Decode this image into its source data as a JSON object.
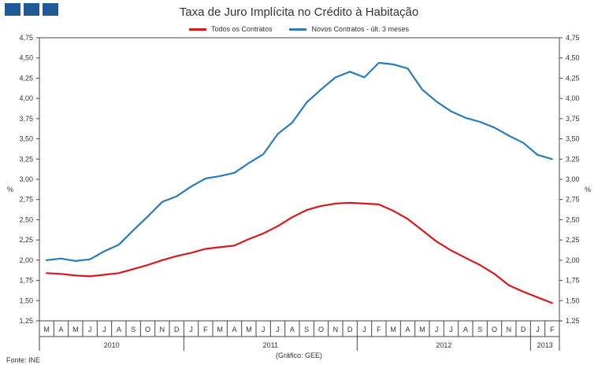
{
  "chart_data": {
    "type": "line",
    "title": "Taxa de Juro Implícita no Crédito à Habitação",
    "ylabel_left": "%",
    "ylabel_right": "%",
    "ylim": [
      1.25,
      4.75
    ],
    "yticks": [
      "1,25",
      "1,50",
      "1,75",
      "2,00",
      "2,25",
      "2,50",
      "2,75",
      "3,00",
      "3,25",
      "3,50",
      "3,75",
      "4,00",
      "4,25",
      "4,50",
      "4,75"
    ],
    "categories": [
      "M",
      "A",
      "M",
      "J",
      "J",
      "A",
      "S",
      "O",
      "N",
      "D",
      "J",
      "F",
      "M",
      "A",
      "M",
      "J",
      "J",
      "A",
      "S",
      "O",
      "N",
      "D",
      "J",
      "F",
      "M",
      "A",
      "M",
      "J",
      "J",
      "A",
      "S",
      "O",
      "N",
      "D",
      "J",
      "F"
    ],
    "years": [
      {
        "label": "2010",
        "start": 0,
        "end": 9
      },
      {
        "label": "2011",
        "start": 10,
        "end": 21
      },
      {
        "label": "2012",
        "start": 22,
        "end": 33
      },
      {
        "label": "2013",
        "start": 34,
        "end": 35
      }
    ],
    "series": [
      {
        "name": "Todos os Contratos",
        "color": "#d7191c",
        "values": [
          1.84,
          1.83,
          1.81,
          1.8,
          1.82,
          1.84,
          1.89,
          1.94,
          2.0,
          2.05,
          2.09,
          2.14,
          2.16,
          2.18,
          2.26,
          2.33,
          2.42,
          2.53,
          2.62,
          2.67,
          2.7,
          2.71,
          2.7,
          2.69,
          2.61,
          2.51,
          2.37,
          2.23,
          2.12,
          2.03,
          1.94,
          1.83,
          1.69,
          1.61,
          1.54,
          1.47
        ]
      },
      {
        "name": "Novos Contratos - últ. 3 meses",
        "color": "#2b7bba",
        "values": [
          2.0,
          2.02,
          1.99,
          2.01,
          2.11,
          2.19,
          2.37,
          2.54,
          2.72,
          2.79,
          2.91,
          3.01,
          3.04,
          3.08,
          3.2,
          3.31,
          3.56,
          3.7,
          3.95,
          4.11,
          4.26,
          4.33,
          4.26,
          4.44,
          4.42,
          4.37,
          4.11,
          3.96,
          3.84,
          3.76,
          3.71,
          3.64,
          3.54,
          3.45,
          3.3,
          3.25
        ]
      }
    ]
  },
  "header": {
    "title": "Taxa de Juro Implícita no Crédito à Habitação"
  },
  "legend": {
    "series1": "Todos os Contratos",
    "series2": "Novos Contratos - últ. 3 meses"
  },
  "footer": {
    "source": "Fonte: INE",
    "credit": "(Gráfico: GEE)"
  }
}
